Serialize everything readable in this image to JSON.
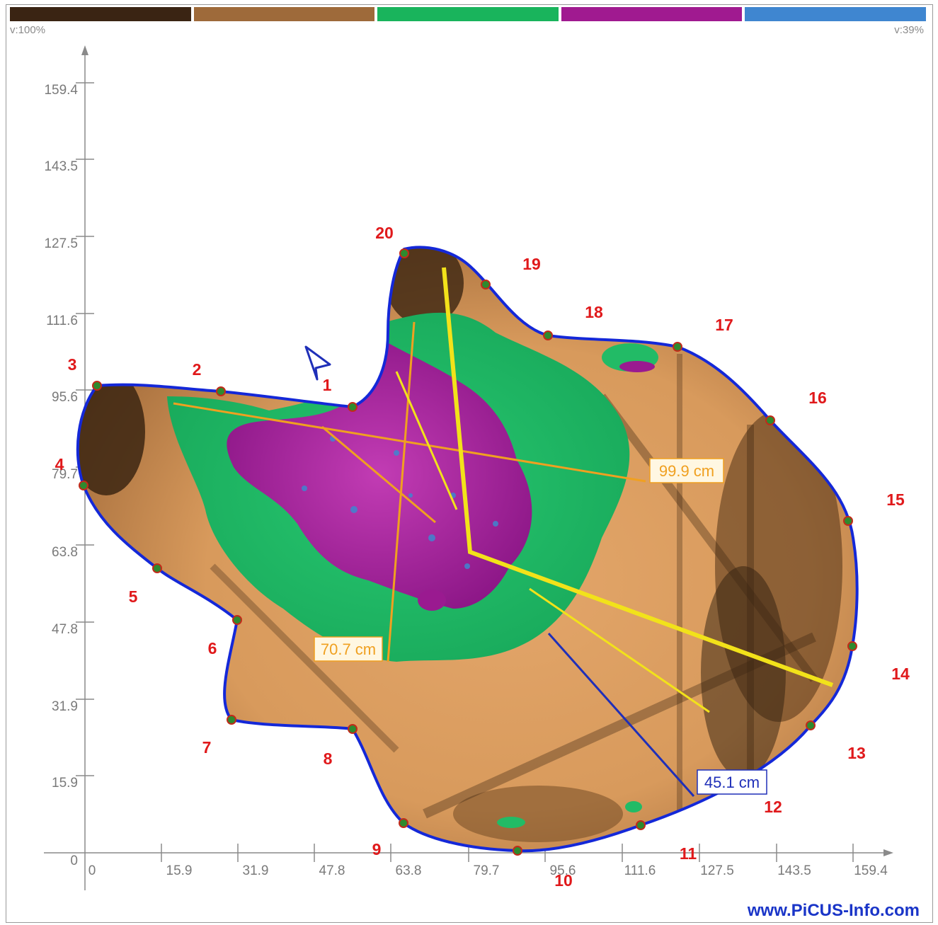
{
  "legend": {
    "colors": [
      "#3a2413",
      "#9e6a3a",
      "#19b45c",
      "#a01a90",
      "#3f86d0"
    ],
    "left_label": "v:100%",
    "right_label": "v:39%"
  },
  "axes": {
    "x_ticks": [
      "0",
      "15.9",
      "31.9",
      "47.8",
      "63.8",
      "79.7",
      "95.6",
      "111.6",
      "127.5",
      "143.5",
      "159.4"
    ],
    "y_ticks": [
      "0",
      "15.9",
      "31.9",
      "47.8",
      "63.8",
      "79.7",
      "95.6",
      "111.6",
      "127.5",
      "143.5",
      "159.4"
    ]
  },
  "sensors": [
    "1",
    "2",
    "3",
    "4",
    "5",
    "6",
    "7",
    "8",
    "9",
    "10",
    "11",
    "12",
    "13",
    "14",
    "15",
    "16",
    "17",
    "18",
    "19",
    "20"
  ],
  "measurements": {
    "m1": "99.9 cm",
    "m2": "70.7 cm",
    "m3": "45.1 cm"
  },
  "colors": {
    "outline": "#1428d8",
    "sensor_dot": "#2e8a2e",
    "sensor_dot_ring": "#c22a1a",
    "label_red": "#e0191b",
    "measure_orange": "#f0a020",
    "measure_yellow": "#f2e21a",
    "measure_blue": "#1f2fb8"
  },
  "footer": {
    "link": "www.PiCUS-Info.com"
  }
}
